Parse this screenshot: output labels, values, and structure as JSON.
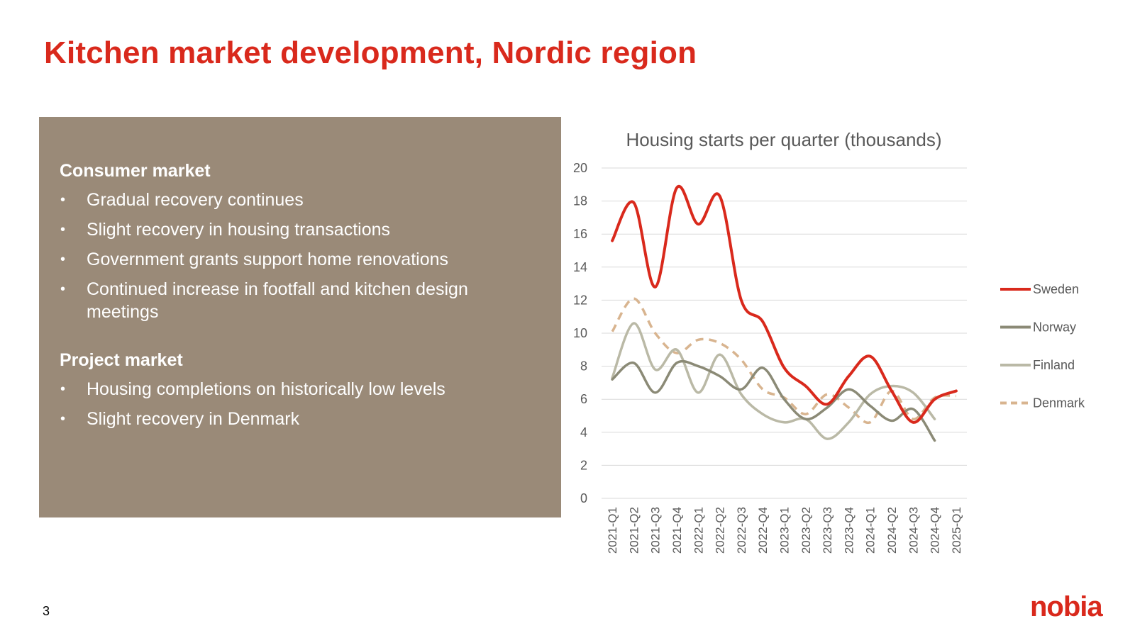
{
  "slide": {
    "title": "Kitchen market development, Nordic region",
    "page_number": "3",
    "logo_text": "nobia"
  },
  "panel": {
    "sections": [
      {
        "heading": "Consumer market",
        "bullets": [
          "Gradual recovery continues",
          "Slight recovery in housing transactions",
          "Government grants support home renovations",
          "Continued increase in footfall and kitchen design meetings"
        ]
      },
      {
        "heading": "Project market",
        "bullets": [
          "Housing completions on historically low levels",
          "Slight recovery in Denmark"
        ]
      }
    ]
  },
  "colors": {
    "accent": "#d9291c",
    "panel_bg": "#9a8a78",
    "sweden": "#d9291c",
    "norway": "#8b8a76",
    "finland": "#bab9a6",
    "denmark": "#d8b48f",
    "grid": "#d9d9d9",
    "axis_text": "#595959"
  },
  "chart_data": {
    "type": "line",
    "title": "Housing starts per quarter (thousands)",
    "xlabel": "",
    "ylabel": "",
    "ylim": [
      0,
      20
    ],
    "yticks": [
      0,
      2,
      4,
      6,
      8,
      10,
      12,
      14,
      16,
      18,
      20
    ],
    "grid": true,
    "legend_position": "right",
    "categories": [
      "2021-Q1",
      "2021-Q2",
      "2021-Q3",
      "2021-Q4",
      "2022-Q1",
      "2022-Q2",
      "2022-Q3",
      "2022-Q4",
      "2023-Q1",
      "2023-Q2",
      "2023-Q3",
      "2023-Q4",
      "2024-Q1",
      "2024-Q2",
      "2024-Q3",
      "2024-Q4",
      "2025-Q1"
    ],
    "series": [
      {
        "name": "Sweden",
        "style": "solid",
        "values": [
          15.6,
          17.9,
          12.8,
          18.8,
          16.6,
          18.3,
          12.0,
          10.7,
          7.9,
          6.8,
          5.7,
          7.4,
          8.6,
          6.5,
          4.6,
          6.0,
          6.5
        ]
      },
      {
        "name": "Norway",
        "style": "solid",
        "values": [
          7.2,
          8.2,
          6.4,
          8.2,
          8.0,
          7.4,
          6.6,
          7.9,
          6.0,
          4.8,
          5.5,
          6.6,
          5.6,
          4.7,
          5.4,
          3.5,
          null
        ]
      },
      {
        "name": "Finland",
        "style": "solid",
        "values": [
          7.3,
          10.6,
          7.8,
          9.0,
          6.4,
          8.7,
          6.3,
          5.1,
          4.6,
          4.8,
          3.6,
          4.6,
          6.3,
          6.8,
          6.4,
          4.8,
          null
        ]
      },
      {
        "name": "Denmark",
        "style": "dashed",
        "values": [
          10.1,
          12.1,
          10.0,
          8.8,
          9.6,
          9.4,
          8.4,
          6.6,
          6.1,
          5.1,
          6.3,
          5.5,
          4.6,
          6.5,
          4.8,
          6.1,
          6.2
        ]
      }
    ]
  }
}
